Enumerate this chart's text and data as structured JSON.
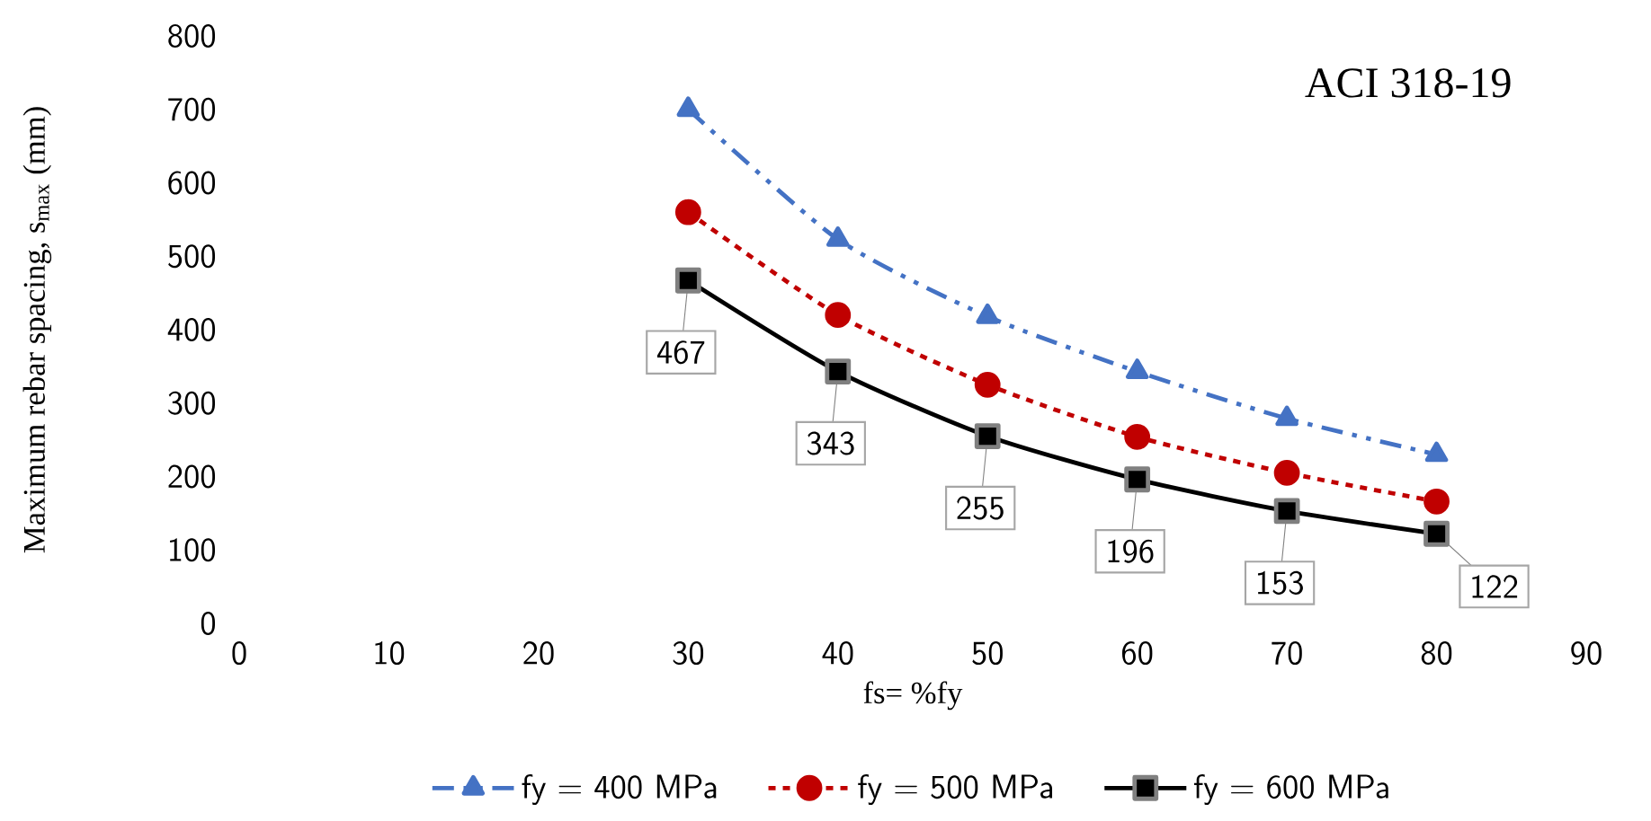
{
  "chart_data": {
    "type": "line",
    "xlabel": "fs= %fy",
    "ylabel": "Maximum rebar spacing, s$_{max}$ (mm)",
    "x": [
      30,
      40,
      50,
      60,
      70,
      80
    ],
    "xlim": [
      0,
      90
    ],
    "xticks": [
      0,
      10,
      20,
      30,
      40,
      50,
      60,
      70,
      80,
      90
    ],
    "ylim": [
      0,
      800
    ],
    "yticks": [
      0,
      100,
      200,
      300,
      400,
      500,
      600,
      700,
      800
    ],
    "grid": false,
    "legend": "bottom",
    "annotations": [
      "ACI 318-19"
    ],
    "series": [
      {
        "name": "fy = 400 MPa",
        "color": "#4472c4",
        "marker": "triangle",
        "line_style": "dashdot",
        "values": [
          700,
          523,
          418,
          343,
          279,
          230
        ]
      },
      {
        "name": "fy = 500 MPa",
        "color": "#c00000",
        "marker": "circle",
        "line_style": "dashed",
        "values": [
          560,
          420,
          325,
          254,
          205,
          166
        ]
      },
      {
        "name": "fy = 600 MPa",
        "color": "#000000",
        "marker": "square",
        "line_style": "solid",
        "values": [
          467,
          343,
          255,
          196,
          153,
          122
        ],
        "value_labels": [
          "467",
          "343",
          "255",
          "196",
          "153",
          "122"
        ]
      }
    ]
  }
}
